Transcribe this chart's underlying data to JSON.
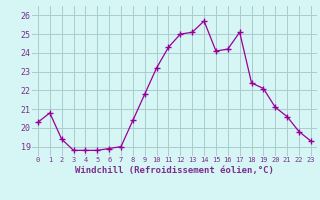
{
  "x": [
    0,
    1,
    2,
    3,
    4,
    5,
    6,
    7,
    8,
    9,
    10,
    11,
    12,
    13,
    14,
    15,
    16,
    17,
    18,
    19,
    20,
    21,
    22,
    23
  ],
  "y": [
    20.3,
    20.8,
    19.4,
    18.8,
    18.8,
    18.8,
    18.9,
    19.0,
    20.4,
    21.8,
    23.2,
    24.3,
    25.0,
    25.1,
    25.7,
    24.1,
    24.2,
    25.1,
    22.4,
    22.1,
    21.1,
    20.6,
    19.8,
    19.3
  ],
  "line_color": "#990099",
  "marker": "+",
  "marker_size": 4,
  "bg_color": "#d6f5f5",
  "grid_color": "#aacccc",
  "xlabel": "Windchill (Refroidissement éolien,°C)",
  "xlabel_color": "#7b2f8c",
  "ylabel_ticks": [
    19,
    20,
    21,
    22,
    23,
    24,
    25,
    26
  ],
  "ylim": [
    18.5,
    26.5
  ],
  "xlim": [
    -0.5,
    23.5
  ],
  "xtick_fontsize": 5.0,
  "ytick_fontsize": 6.0,
  "xlabel_fontsize": 6.5
}
